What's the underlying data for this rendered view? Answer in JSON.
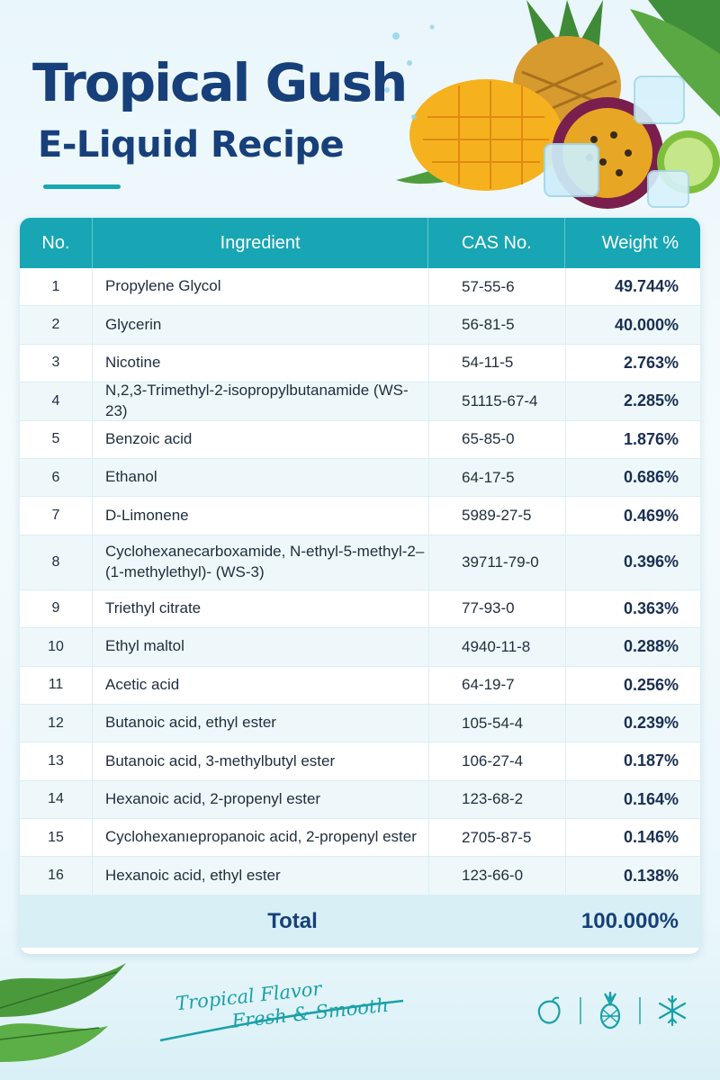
{
  "header": {
    "title": "Tropical Gush",
    "subtitle": "E-Liquid Recipe"
  },
  "table": {
    "headers": {
      "no": "No.",
      "ingredient": "Ingredient",
      "cas": "CAS No.",
      "weight": "Weight %"
    },
    "rows": [
      {
        "no": "1",
        "ingredient": "Propylene Glycol",
        "cas": "57-55-6",
        "weight": "49.744%"
      },
      {
        "no": "2",
        "ingredient": "Glycerin",
        "cas": "56-81-5",
        "weight": "40.000%"
      },
      {
        "no": "3",
        "ingredient": "Nicotine",
        "cas": "54-11-5",
        "weight": "2.763%"
      },
      {
        "no": "4",
        "ingredient": "N,2,3-Trimethyl-2-isopropylbutanamide (WS-23)",
        "cas": "51115-67-4",
        "weight": "2.285%"
      },
      {
        "no": "5",
        "ingredient": "Benzoic acid",
        "cas": "65-85-0",
        "weight": "1.876%"
      },
      {
        "no": "6",
        "ingredient": "Ethanol",
        "cas": "64-17-5",
        "weight": "0.686%"
      },
      {
        "no": "7",
        "ingredient": "D-Limonene",
        "cas": "5989-27-5",
        "weight": "0.469%"
      },
      {
        "no": "8",
        "ingredient": "Cyclohexanecarboxamide, N-ethyl-5-methyl-2–(1-methylethyl)- (WS-3)",
        "cas": "39711-79-0",
        "weight": "0.396%"
      },
      {
        "no": "9",
        "ingredient": "Triethyl citrate",
        "cas": "77-93-0",
        "weight": "0.363%"
      },
      {
        "no": "10",
        "ingredient": "Ethyl maltol",
        "cas": "4940-11-8",
        "weight": "0.288%"
      },
      {
        "no": "11",
        "ingredient": "Acetic acid",
        "cas": "64-19-7",
        "weight": "0.256%"
      },
      {
        "no": "12",
        "ingredient": "Butanoic acid, ethyl ester",
        "cas": "105-54-4",
        "weight": "0.239%"
      },
      {
        "no": "13",
        "ingredient": "Butanoic acid, 3-methylbutyl ester",
        "cas": "106-27-4",
        "weight": "0.187%"
      },
      {
        "no": "14",
        "ingredient": "Hexanoic acid, 2-propenyl ester",
        "cas": "123-68-2",
        "weight": "0.164%"
      },
      {
        "no": "15",
        "ingredient": "Cyclohexanıepropanoic acid, 2-propenyl ester",
        "cas": "2705-87-5",
        "weight": "0.146%"
      },
      {
        "no": "16",
        "ingredient": "Hexanoic acid, ethyl ester",
        "cas": "123-66-0",
        "weight": "0.138%"
      }
    ],
    "total": {
      "label": "Total",
      "weight": "100.000%"
    }
  },
  "footer": {
    "tagline_line1": "Tropical Flavor",
    "tagline_line2": "Fresh & Smooth",
    "icons": [
      "mango-icon",
      "pineapple-icon",
      "snowflake-icon"
    ]
  },
  "colors": {
    "accent": "#18a6b4",
    "title": "#17407a",
    "row_alt": "#eef8fb"
  }
}
